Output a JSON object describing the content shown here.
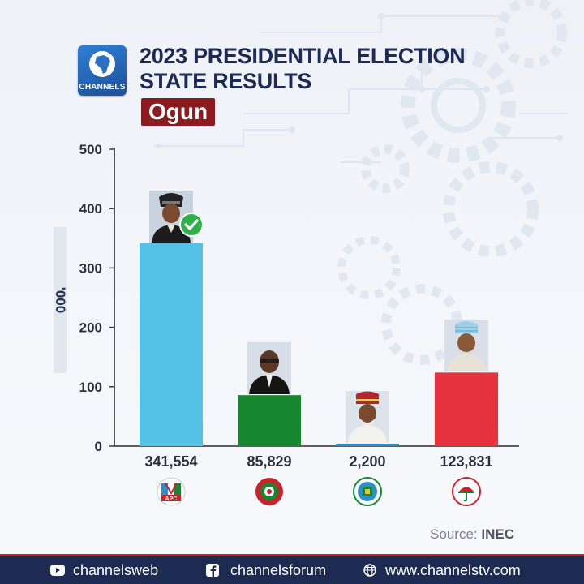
{
  "header": {
    "logo_text": "CHANNELS",
    "title_line1": "2023 PRESIDENTIAL ELECTION",
    "title_line2": "STATE RESULTS",
    "state": "Ogun"
  },
  "chart_data": {
    "type": "bar",
    "title": "2023 PRESIDENTIAL ELECTION STATE RESULTS",
    "subtitle": "Ogun",
    "categories": [
      "APC",
      "LP",
      "NNPP",
      "PDP"
    ],
    "values": [
      341.554,
      85.829,
      2.2,
      123.831
    ],
    "value_labels": [
      "341,554",
      "85,829",
      "2,200",
      "123,831"
    ],
    "colors": [
      "#56c1e7",
      "#16862f",
      "#2a8ed0",
      "#e6333d"
    ],
    "ylabel": "'000",
    "yticks": [
      "0",
      "100",
      "200",
      "300",
      "400",
      "500"
    ],
    "ylim": [
      0,
      500
    ],
    "winner": "APC",
    "grid": false
  },
  "source": {
    "label": "Source:",
    "value": "INEC"
  },
  "footer": {
    "youtube": "channelsweb",
    "facebook": "channelsforum",
    "website": "www.channelstv.com"
  },
  "icons": [
    "africa-globe-icon",
    "check-icon",
    "youtube-icon",
    "facebook-icon",
    "globe-icon"
  ]
}
